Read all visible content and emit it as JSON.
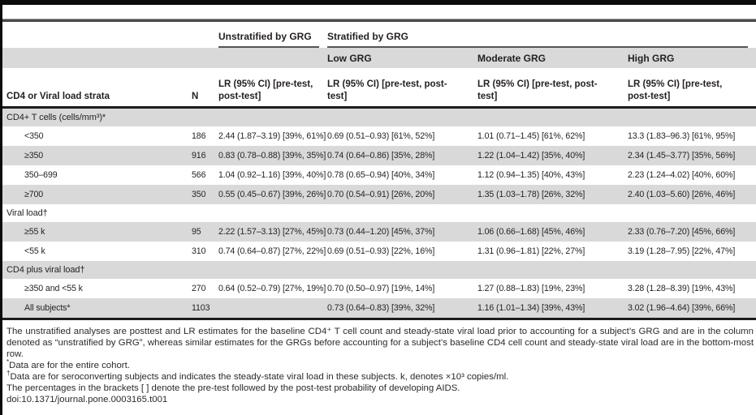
{
  "table": {
    "col_groups": {
      "unstratified": "Unstratified by GRG",
      "stratified": "Stratified by GRG"
    },
    "grg_levels": [
      "Low GRG",
      "Moderate GRG",
      "High GRG"
    ],
    "strata_header": "CD4 or Viral load strata",
    "n_header": "N",
    "lr_header": "LR (95% CI) [pre-test, post-test]",
    "rows": [
      {
        "type": "section",
        "label": "CD4+ T cells (cells/mm³)*"
      },
      {
        "type": "data",
        "label": "<350",
        "n": "186",
        "unstratified": "2.44 (1.87–3.19) [39%, 61%]",
        "low": "0.69 (0.51–0.93) [61%, 52%]",
        "moderate": "1.01 (0.71–1.45) [61%, 62%]",
        "high": "13.3 (1.83–96.3) [61%, 95%]"
      },
      {
        "type": "data",
        "label": "≥350",
        "n": "916",
        "unstratified": "0.83 (0.78–0.88) [39%, 35%]",
        "low": "0.74 (0.64–0.86) [35%, 28%]",
        "moderate": "1.22 (1.04–1.42) [35%, 40%]",
        "high": "2.34 (1.45–3.77) [35%, 56%]"
      },
      {
        "type": "data",
        "label": "350–699",
        "n": "566",
        "unstratified": "1.04 (0.92–1.16) [39%, 40%]",
        "low": "0.78 (0.65–0.94) [40%, 34%]",
        "moderate": "1.12 (0.94–1.35) [40%, 43%]",
        "high": "2.23 (1.24–4.02) [40%, 60%]"
      },
      {
        "type": "data",
        "label": "≥700",
        "n": "350",
        "unstratified": "0.55 (0.45–0.67) [39%, 26%]",
        "low": "0.70 (0.54–0.91) [26%, 20%]",
        "moderate": "1.35 (1.03–1.78) [26%, 32%]",
        "high": "2.40 (1.03–5.60) [26%, 46%]"
      },
      {
        "type": "section",
        "label": "Viral load†"
      },
      {
        "type": "data",
        "label": "≥55 k",
        "n": "95",
        "unstratified": "2.22 (1.57–3.13) [27%, 45%]",
        "low": "0.73 (0.44–1.20) [45%, 37%]",
        "moderate": "1.06 (0.66–1.68) [45%, 46%]",
        "high": "2.33 (0.76–7.20) [45%, 66%]"
      },
      {
        "type": "data",
        "label": "<55 k",
        "n": "310",
        "unstratified": "0.74 (0.64–0.87) [27%, 22%]",
        "low": "0.69 (0.51–0.93) [22%, 16%]",
        "moderate": "1.31 (0.96–1.81) [22%, 27%]",
        "high": "3.19 (1.28–7.95) [22%, 47%]"
      },
      {
        "type": "section",
        "label": "CD4 plus viral load†"
      },
      {
        "type": "data",
        "label": "≥350 and <55 k",
        "n": "270",
        "unstratified": "0.64 (0.52–0.79) [27%, 19%]",
        "low": "0.70 (0.50–0.97) [19%, 14%]",
        "moderate": "1.27 (0.88–1.83) [19%, 23%]",
        "high": "3.28 (1.28–8.39) [19%, 43%]"
      },
      {
        "type": "data",
        "label": "All subjects*",
        "n": "1103",
        "unstratified": "",
        "low": "0.73 (0.64–0.83) [39%, 32%]",
        "moderate": "1.16 (1.01–1.34) [39%, 43%]",
        "high": "3.02 (1.96–4.64) [39%, 66%]"
      }
    ]
  },
  "footnotes": {
    "para": "The unstratified analyses are posttest and LR estimates for the baseline CD4⁺ T cell count and steady-state viral load prior to accounting for a subject’s GRG and are in the column denoted as “unstratified by GRG”, whereas similar estimates for the GRGs before accounting for a subject’s baseline CD4 cell count and steady-state viral load are in the bottom-most row.",
    "items": [
      {
        "marker": "*",
        "text": "Data are for the entire cohort."
      },
      {
        "marker": "†",
        "text": "Data are for seroconverting subjects and indicates the steady-state viral load in these subjects. k, denotes ×10³ copies/ml."
      }
    ],
    "brackets_note": "The percentages in the brackets [ ] denote the pre-test followed by the post-test probability of developing AIDS.",
    "doi": "doi:10.1371/journal.pone.0003165.t001"
  },
  "colors": {
    "row_shade": "#d9d9d9",
    "rule_dark": "#1c1c1c",
    "text": "#231f20"
  }
}
